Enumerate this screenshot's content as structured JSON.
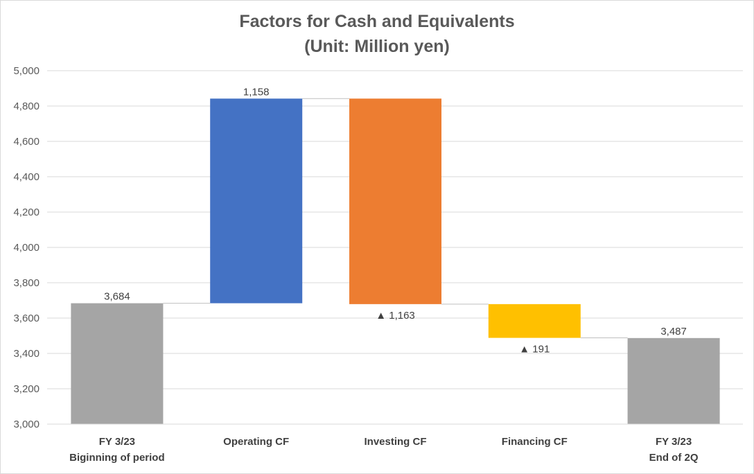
{
  "title": "Factors for Cash and Equivalents",
  "subtitle": "(Unit: Million yen)",
  "colors": {
    "total": "#a5a5a5",
    "operating": "#4472c4",
    "investing": "#ed7d31",
    "financing": "#ffc000",
    "grid": "#d9d9d9",
    "axis_text": "#595959"
  },
  "chart_data": {
    "type": "bar",
    "subtype": "waterfall",
    "title": "Factors for Cash and Equivalents",
    "subtitle": "(Unit: Million yen)",
    "categories": [
      [
        "FY 3/23",
        "Biginning of period"
      ],
      [
        "Operating CF"
      ],
      [
        "Investing CF"
      ],
      [
        "Financing CF"
      ],
      [
        "FY 3/23",
        "End of 2Q"
      ]
    ],
    "bars": [
      {
        "kind": "total",
        "start": 0,
        "end": 3684,
        "label": "3,684",
        "color": "#a5a5a5"
      },
      {
        "kind": "increase",
        "start": 3684,
        "end": 4842,
        "label": "1,158",
        "color": "#4472c4"
      },
      {
        "kind": "decrease",
        "start": 4842,
        "end": 3679,
        "label": "▲ 1,163",
        "color": "#ed7d31"
      },
      {
        "kind": "decrease",
        "start": 3679,
        "end": 3488,
        "label": "▲ 191",
        "color": "#ffc000"
      },
      {
        "kind": "total",
        "start": 0,
        "end": 3487,
        "label": "3,487",
        "color": "#a5a5a5"
      }
    ],
    "ylim": [
      3000,
      5000
    ],
    "yticks": [
      3000,
      3200,
      3400,
      3600,
      3800,
      4000,
      4200,
      4400,
      4600,
      4800,
      5000
    ],
    "ytick_labels": [
      "3,000",
      "3,200",
      "3,400",
      "3,600",
      "3,800",
      "4,000",
      "4,200",
      "4,400",
      "4,600",
      "4,800",
      "5,000"
    ],
    "grid": true,
    "legend": "none",
    "connectors": true
  }
}
